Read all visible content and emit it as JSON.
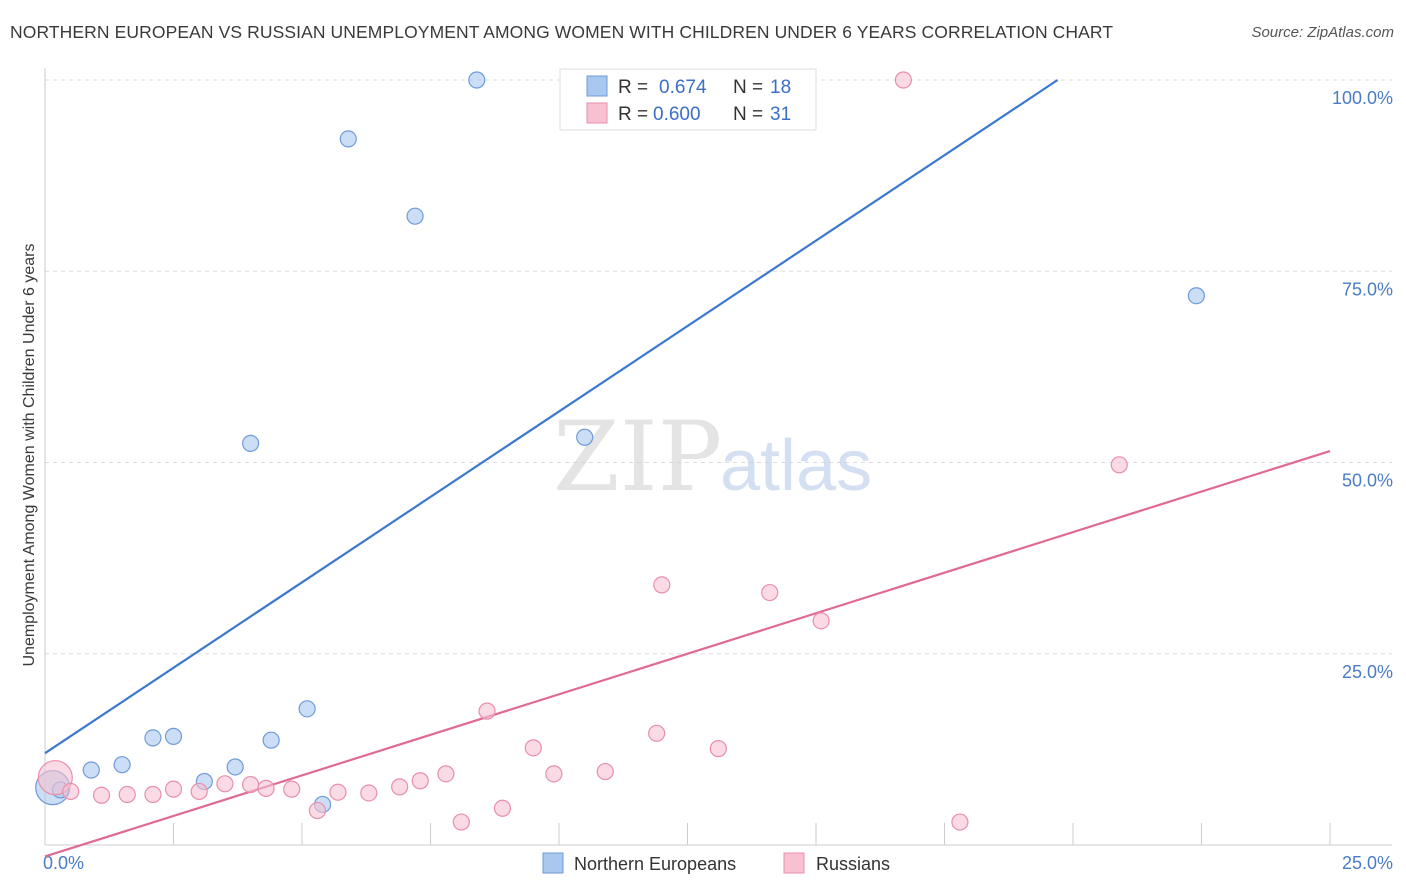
{
  "title": "NORTHERN EUROPEAN VS RUSSIAN UNEMPLOYMENT AMONG WOMEN WITH CHILDREN UNDER 6 YEARS CORRELATION CHART",
  "source": "Source: ZipAtlas.com",
  "watermark": {
    "zip": "ZIP",
    "atlas": "atlas"
  },
  "stats": [
    {
      "r_label": "R =",
      "r_value": "0.674",
      "n_label": "N =",
      "n_value": "18",
      "color": "#a9c8f0",
      "stroke": "#6f9bd8"
    },
    {
      "r_label": "R =",
      "r_value": "0.600",
      "n_label": "N =",
      "n_value": "31",
      "color": "#f7c1d2",
      "stroke": "#e88fab"
    }
  ],
  "legend": [
    "Northern Europeans",
    "Russians"
  ],
  "chart_data": {
    "type": "scatter",
    "title": "NORTHERN EUROPEAN VS RUSSIAN UNEMPLOYMENT AMONG WOMEN WITH CHILDREN UNDER 6 YEARS CORRELATION CHART",
    "xlabel": "",
    "ylabel": "Unemployment Among Women with Children Under 6 years",
    "xlim": [
      0,
      25
    ],
    "ylim": [
      0,
      100
    ],
    "x_tick_labels": [
      "0.0%",
      "25.0%"
    ],
    "y_ticks": [
      25,
      50,
      75,
      100
    ],
    "y_tick_labels": [
      "25.0%",
      "50.0%",
      "75.0%",
      "100.0%"
    ],
    "grid": true,
    "legend_position": "bottom",
    "series": [
      {
        "name": "Northern Europeans",
        "color": "#a9c8f0",
        "stroke": "#6f9bd8",
        "line_color": "#3b78d0",
        "trend": [
          [
            0,
            12.0
          ],
          [
            19.7,
            100
          ]
        ],
        "points": [
          {
            "x": 0.15,
            "y": 7.5,
            "big": true
          },
          {
            "x": 0.3,
            "y": 7.2
          },
          {
            "x": 0.9,
            "y": 9.8
          },
          {
            "x": 1.5,
            "y": 10.5
          },
          {
            "x": 2.1,
            "y": 14.0
          },
          {
            "x": 2.5,
            "y": 14.2
          },
          {
            "x": 3.1,
            "y": 8.3
          },
          {
            "x": 3.7,
            "y": 10.2
          },
          {
            "x": 4.0,
            "y": 52.5
          },
          {
            "x": 4.4,
            "y": 13.7
          },
          {
            "x": 5.1,
            "y": 17.8
          },
          {
            "x": 5.4,
            "y": 5.3
          },
          {
            "x": 5.9,
            "y": 92.3
          },
          {
            "x": 7.2,
            "y": 82.2
          },
          {
            "x": 8.4,
            "y": 100.0
          },
          {
            "x": 10.5,
            "y": 53.3
          },
          {
            "x": 14.1,
            "y": 100.0
          },
          {
            "x": 22.4,
            "y": 71.8
          }
        ]
      },
      {
        "name": "Russians",
        "color": "#f7c1d2",
        "stroke": "#e88fab",
        "line_color": "#e06a93",
        "trend": [
          [
            0,
            -1.5
          ],
          [
            25,
            51.5
          ]
        ],
        "points": [
          {
            "x": 0.2,
            "y": 8.8,
            "big": true
          },
          {
            "x": 0.5,
            "y": 7.0
          },
          {
            "x": 1.1,
            "y": 6.5
          },
          {
            "x": 1.6,
            "y": 6.6
          },
          {
            "x": 2.1,
            "y": 6.6
          },
          {
            "x": 2.5,
            "y": 7.3
          },
          {
            "x": 3.0,
            "y": 7.0
          },
          {
            "x": 3.5,
            "y": 8.0
          },
          {
            "x": 4.0,
            "y": 7.9
          },
          {
            "x": 4.3,
            "y": 7.4
          },
          {
            "x": 4.8,
            "y": 7.3
          },
          {
            "x": 5.3,
            "y": 4.5
          },
          {
            "x": 5.7,
            "y": 6.9
          },
          {
            "x": 6.3,
            "y": 6.8
          },
          {
            "x": 6.9,
            "y": 7.6
          },
          {
            "x": 7.3,
            "y": 8.4
          },
          {
            "x": 7.8,
            "y": 9.3
          },
          {
            "x": 8.1,
            "y": 3.0
          },
          {
            "x": 8.6,
            "y": 17.5
          },
          {
            "x": 8.9,
            "y": 4.8
          },
          {
            "x": 9.5,
            "y": 12.7
          },
          {
            "x": 9.9,
            "y": 9.3
          },
          {
            "x": 10.9,
            "y": 9.6
          },
          {
            "x": 11.9,
            "y": 14.6
          },
          {
            "x": 12.0,
            "y": 34.0
          },
          {
            "x": 13.1,
            "y": 12.6
          },
          {
            "x": 14.1,
            "y": 33.0
          },
          {
            "x": 15.1,
            "y": 29.3
          },
          {
            "x": 16.7,
            "y": 100.0
          },
          {
            "x": 17.8,
            "y": 3.0
          },
          {
            "x": 20.9,
            "y": 49.7
          }
        ]
      }
    ]
  }
}
